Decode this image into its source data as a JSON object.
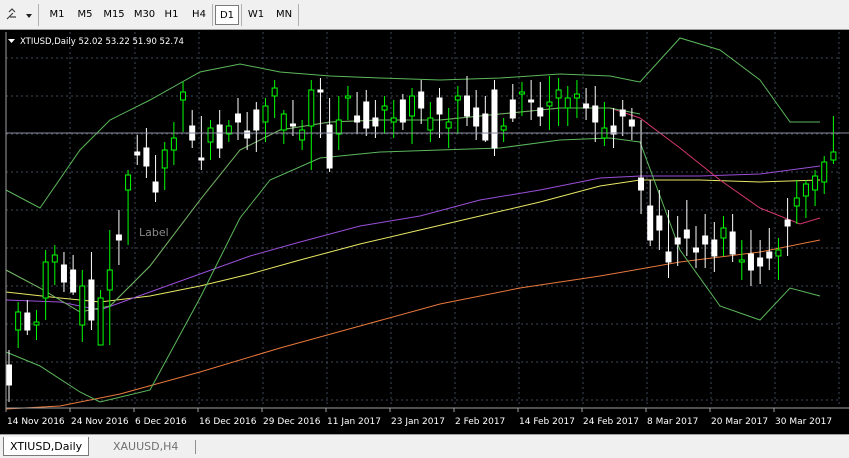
{
  "toolbar": {
    "tool_icon": "cursor-line-tools-icon",
    "timeframes": [
      "M1",
      "M5",
      "M15",
      "M30",
      "H1",
      "H4",
      "D1",
      "W1",
      "MN"
    ],
    "active_timeframe": "D1"
  },
  "chart": {
    "header_text": "XTIUSD,Daily  52.02 53.22 51.90 52.74",
    "label_object": "Label",
    "x_tick_labels": [
      "14 Nov 2016",
      "24 Nov 2016",
      "6 Dec 2016",
      "16 Dec 2016",
      "29 Dec 2016",
      "11 Jan 2017",
      "23 Jan 2017",
      "2 Feb 2017",
      "14 Feb 2017",
      "24 Feb 2017",
      "8 Mar 2017",
      "20 Mar 2017",
      "30 Mar 2017"
    ],
    "colors": {
      "background": "#000000",
      "grid": "#404a5a",
      "bull_candle": "#00ff00",
      "bear_candle": "#ffffff",
      "ma_yellow": "#e8e864",
      "ma_violet": "#9a4fd8",
      "ma_orange": "#e8783c",
      "ma_pink": "#d2386e",
      "bollinger": "#5cb85c",
      "price_line": "#8a8a9a",
      "axis_text": "#ffffff"
    }
  },
  "tabs": {
    "items": [
      "XTIUSD,Daily",
      "XAUUSD,H4"
    ],
    "active": "XTIUSD,Daily"
  }
}
